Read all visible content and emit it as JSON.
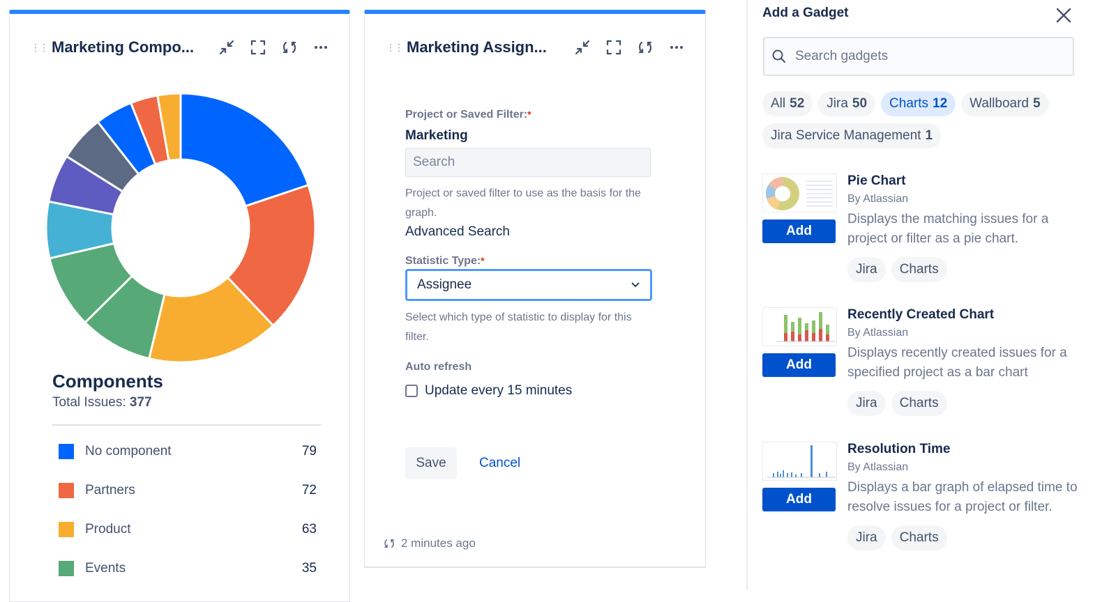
{
  "left_gadget": {
    "title": "Marketing Compo...",
    "legend_title": "Components",
    "total_label": "Total Issues:",
    "total_value": "377"
  },
  "mid_gadget": {
    "title": "Marketing Assign...",
    "filter_label": "Project or Saved Filter:",
    "filter_value": "Marketing",
    "search_placeholder": "Search",
    "filter_help": "Project or saved filter to use as the basis for the graph.",
    "advanced_search": "Advanced Search",
    "stat_label": "Statistic Type:",
    "stat_value": "Assignee",
    "stat_help": "Select which type of statistic to display for this filter.",
    "auto_refresh_label": "Auto refresh",
    "auto_refresh_option": "Update every 15 minutes",
    "save_label": "Save",
    "cancel_label": "Cancel",
    "updated": "2 minutes ago"
  },
  "add_panel": {
    "title": "Add a Gadget",
    "search_placeholder": "Search gadgets",
    "categories": [
      {
        "label": "All",
        "count": "52",
        "active": false
      },
      {
        "label": "Jira",
        "count": "50",
        "active": false
      },
      {
        "label": "Charts",
        "count": "12",
        "active": true
      },
      {
        "label": "Wallboard",
        "count": "5",
        "active": false
      },
      {
        "label": "Jira Service Management",
        "count": "1",
        "active": false
      }
    ],
    "gadgets": [
      {
        "title": "Pie Chart",
        "by": "By Atlassian",
        "desc": "Displays the matching issues for a project or filter as a pie chart.",
        "add": "Add",
        "tags": [
          "Jira",
          "Charts"
        ]
      },
      {
        "title": "Recently Created Chart",
        "by": "By Atlassian",
        "desc": "Displays recently created issues for a specified project as a bar chart",
        "add": "Add",
        "tags": [
          "Jira",
          "Charts"
        ]
      },
      {
        "title": "Resolution Time",
        "by": "By Atlassian",
        "desc": "Displays a bar graph of elapsed time to resolve issues for a project or filter.",
        "add": "Add",
        "tags": [
          "Jira",
          "Charts"
        ]
      }
    ]
  },
  "chart_data": {
    "type": "pie",
    "title": "Components",
    "categories": [
      "No component",
      "Partners",
      "Product",
      "Events",
      "",
      "",
      "",
      "",
      "",
      "",
      ""
    ],
    "values": [
      79,
      72,
      63,
      35,
      35,
      27,
      23,
      22,
      18,
      13,
      11
    ],
    "colors": [
      "#0065ff",
      "#f06743",
      "#f8ad30",
      "#57a977",
      "#57a977",
      "#45b1d4",
      "#5e5bc1",
      "#5c6b83",
      "#0065ff",
      "#f06743",
      "#f8ad30"
    ],
    "legend_visible": [
      "No component",
      "Partners",
      "Product",
      "Events"
    ],
    "legend_values": [
      79,
      72,
      63,
      35
    ]
  }
}
